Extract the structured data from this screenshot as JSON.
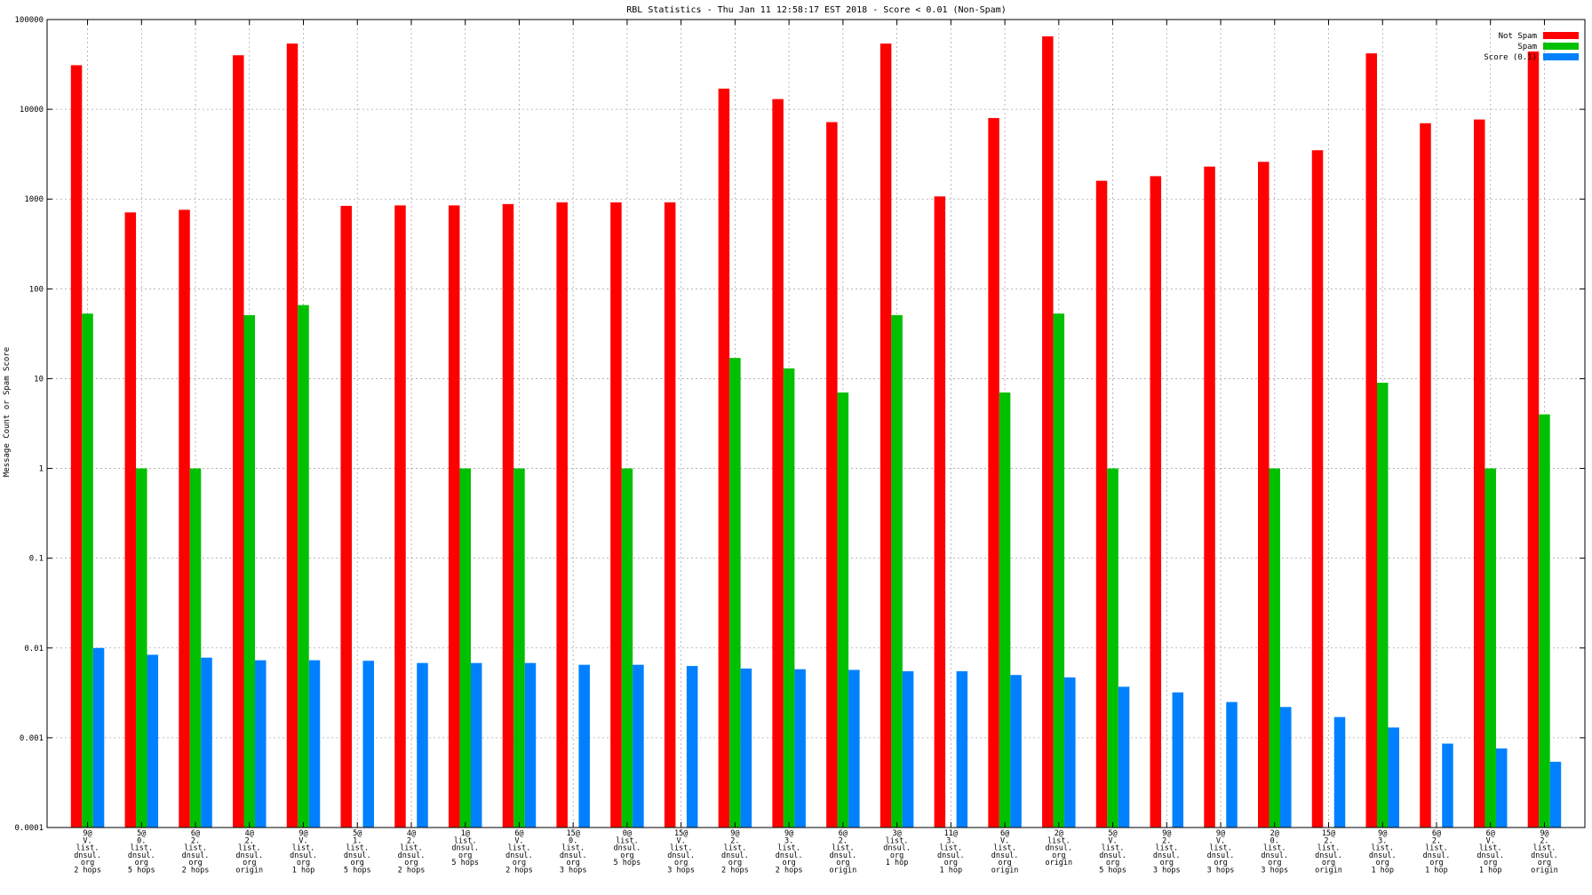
{
  "chart_data": {
    "type": "bar",
    "title": "RBL Statistics - Thu Jan 11 12:58:17 EST 2018 - Score < 0.01 (Non-Spam)",
    "xlabel": "",
    "ylabel": "Message Count or Spam Score",
    "yscale": "log",
    "ylim": [
      0.0001,
      100000
    ],
    "yticks": [
      "100000",
      "10000",
      "1000",
      "100",
      "10",
      "1",
      "0.1",
      "0.01",
      "0.001",
      "0.0001"
    ],
    "grid": true,
    "legend_position": "top-right",
    "categories": [
      [
        "9@",
        "V.",
        "list.",
        "dnsul.",
        "org",
        "2 hops"
      ],
      [
        "5@",
        "0.",
        "list.",
        "dnsul.",
        "org",
        "5 hops"
      ],
      [
        "6@",
        "2.",
        "list.",
        "dnsul.",
        "org",
        "2 hops"
      ],
      [
        "4@",
        "2.",
        "list.",
        "dnsul.",
        "org",
        "origin"
      ],
      [
        "9@",
        "V.",
        "list.",
        "dnsul.",
        "org",
        "1 hop"
      ],
      [
        "5@",
        "1.",
        "list.",
        "dnsul.",
        "org",
        "5 hops"
      ],
      [
        "4@",
        "2.",
        "list.",
        "dnsul.",
        "org",
        "2 hops"
      ],
      [
        "1@",
        "list.",
        "dnsul.",
        "org",
        "5 hops"
      ],
      [
        "6@",
        "V.",
        "list.",
        "dnsul.",
        "org",
        "2 hops"
      ],
      [
        "15@",
        "0.",
        "list.",
        "dnsul.",
        "org",
        "3 hops"
      ],
      [
        "0@",
        "list.",
        "dnsul.",
        "org",
        "5 hops"
      ],
      [
        "15@",
        "V.",
        "list.",
        "dnsul.",
        "org",
        "3 hops"
      ],
      [
        "9@",
        "2.",
        "list.",
        "dnsul.",
        "org",
        "2 hops"
      ],
      [
        "9@",
        "3.",
        "list.",
        "dnsul.",
        "org",
        "2 hops"
      ],
      [
        "6@",
        "2.",
        "list.",
        "dnsul.",
        "org",
        "origin"
      ],
      [
        "3@",
        "list.",
        "dnsul.",
        "org",
        "1 hop"
      ],
      [
        "11@",
        "3.",
        "list.",
        "dnsul.",
        "org",
        "1 hop"
      ],
      [
        "6@",
        "V.",
        "list.",
        "dnsul.",
        "org",
        "origin"
      ],
      [
        "2@",
        "list.",
        "dnsul.",
        "org",
        "origin"
      ],
      [
        "5@",
        "V.",
        "list.",
        "dnsul.",
        "org",
        "5 hops"
      ],
      [
        "9@",
        "2.",
        "list.",
        "dnsul.",
        "org",
        "3 hops"
      ],
      [
        "9@",
        "V.",
        "list.",
        "dnsul.",
        "org",
        "3 hops"
      ],
      [
        "2@",
        "0.",
        "list.",
        "dnsul.",
        "org",
        "3 hops"
      ],
      [
        "15@",
        "2.",
        "list.",
        "dnsul.",
        "org",
        "origin"
      ],
      [
        "9@",
        "3.",
        "list.",
        "dnsul.",
        "org",
        "1 hop"
      ],
      [
        "6@",
        "2.",
        "list.",
        "dnsul.",
        "org",
        "1 hop"
      ],
      [
        "6@",
        "V.",
        "list.",
        "dnsul.",
        "org",
        "1 hop"
      ],
      [
        "9@",
        "2.",
        "list.",
        "dnsul.",
        "org",
        "origin"
      ]
    ],
    "series": [
      {
        "name": "Not Spam",
        "color": "#ff0000",
        "values": [
          31000,
          710,
          760,
          40000,
          54000,
          840,
          850,
          850,
          880,
          920,
          920,
          920,
          17000,
          13000,
          7200,
          54000,
          1070,
          8000,
          65000,
          1600,
          1800,
          2300,
          2600,
          3500,
          42000,
          7000,
          7700,
          44000
        ]
      },
      {
        "name": "Spam",
        "color": "#00c000",
        "values": [
          53,
          1,
          1,
          51,
          66,
          null,
          null,
          1,
          1,
          null,
          1,
          null,
          17,
          13,
          7,
          51,
          null,
          7,
          53,
          1,
          null,
          null,
          1,
          null,
          9,
          null,
          1,
          4
        ]
      },
      {
        "name": "Score (0.1)",
        "color": "#0080ff",
        "values": [
          0.01,
          0.0084,
          0.0078,
          0.0073,
          0.0073,
          0.0072,
          0.0068,
          0.0068,
          0.0068,
          0.0065,
          0.0065,
          0.0063,
          0.0059,
          0.0058,
          0.0057,
          0.0055,
          0.0055,
          0.005,
          0.0047,
          0.0037,
          0.0032,
          0.0025,
          0.0022,
          0.0017,
          0.0013,
          0.00086,
          0.00076,
          0.00054
        ]
      }
    ]
  }
}
